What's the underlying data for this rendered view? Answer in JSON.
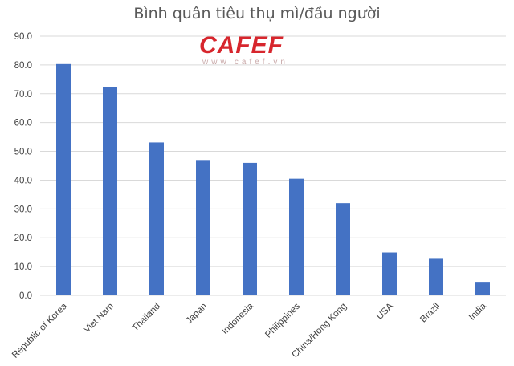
{
  "chart_data": {
    "type": "bar",
    "title": "Bình quân tiêu thụ mì/đầu người",
    "xlabel": "",
    "ylabel": "",
    "categories": [
      "Republic of Korea",
      "Viet Nam",
      "Thailand",
      "Japan",
      "Indonesia",
      "Philippines",
      "China/Hong Kong",
      "USA",
      "Brazil",
      "India"
    ],
    "values": [
      80.3,
      72.2,
      53.1,
      47.0,
      46.0,
      40.5,
      32.0,
      14.9,
      12.7,
      4.7
    ],
    "ylim": [
      0,
      90
    ],
    "yticks": [
      "0.0",
      "10.0",
      "20.0",
      "30.0",
      "40.0",
      "50.0",
      "60.0",
      "70.0",
      "80.0",
      "90.0"
    ],
    "grid": true,
    "bar_color": "#4472c4",
    "grid_color": "#d9d9d9"
  },
  "watermark": {
    "logo": "CAFEF",
    "url": "www.cafef.vn"
  }
}
